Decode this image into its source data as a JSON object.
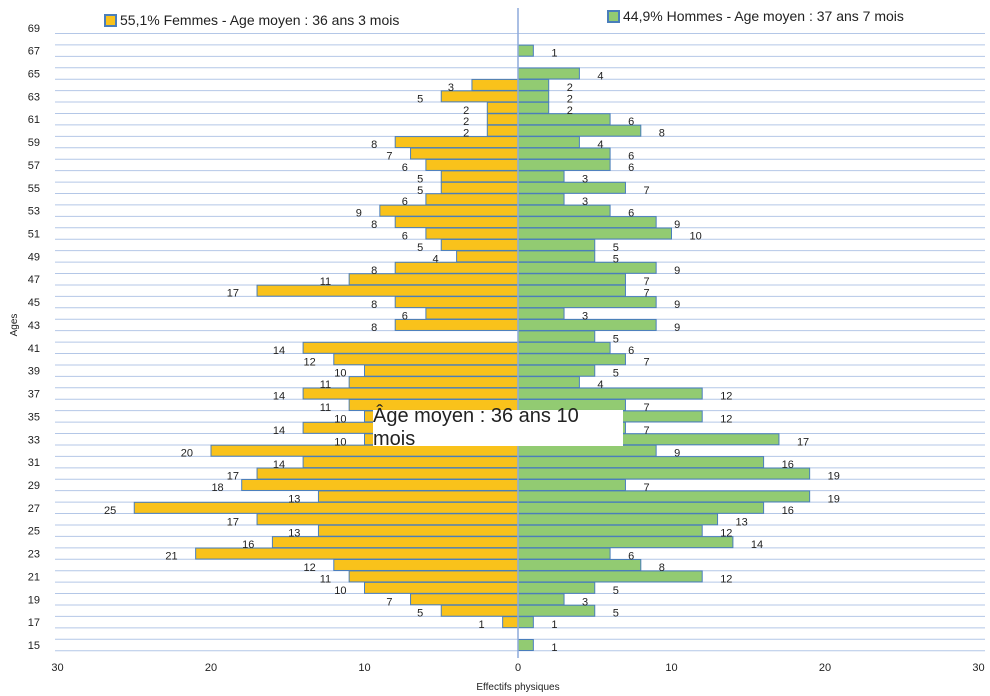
{
  "chart_data": {
    "type": "bar",
    "orientation": "horizontal-diverging",
    "title": "",
    "xlabel": "Effectifs physiques",
    "ylabel": "Ages",
    "xlim": [
      -30,
      30
    ],
    "x_ticks": [
      30,
      20,
      10,
      0,
      10,
      20,
      30
    ],
    "y_ticks": [
      15,
      17,
      19,
      21,
      23,
      25,
      27,
      29,
      31,
      33,
      35,
      37,
      39,
      41,
      43,
      45,
      47,
      49,
      51,
      53,
      55,
      57,
      59,
      61,
      63,
      65,
      67,
      69
    ],
    "categories": [
      15,
      16,
      17,
      18,
      19,
      20,
      21,
      22,
      23,
      24,
      25,
      26,
      27,
      28,
      29,
      30,
      31,
      32,
      33,
      34,
      35,
      36,
      37,
      38,
      39,
      40,
      41,
      42,
      43,
      44,
      45,
      46,
      47,
      48,
      49,
      50,
      51,
      52,
      53,
      54,
      55,
      56,
      57,
      58,
      59,
      60,
      61,
      62,
      63,
      64,
      65,
      66,
      67,
      68,
      69
    ],
    "series": [
      {
        "name": "55,1% Femmes - Age moyen : 36 ans 3 mois",
        "color": "#f9c21b",
        "values": [
          null,
          null,
          1,
          5,
          7,
          10,
          11,
          12,
          21,
          16,
          13,
          17,
          25,
          13,
          18,
          17,
          14,
          20,
          10,
          14,
          10,
          11,
          14,
          11,
          10,
          12,
          14,
          null,
          8,
          6,
          8,
          17,
          11,
          8,
          4,
          5,
          6,
          8,
          9,
          6,
          5,
          5,
          6,
          7,
          8,
          2,
          2,
          2,
          5,
          3,
          null,
          null,
          null,
          null,
          null
        ]
      },
      {
        "name": "44,9% Hommes - Age moyen : 37 ans 7 mois",
        "color": "#92cb72",
        "values": [
          1,
          null,
          1,
          5,
          3,
          5,
          12,
          8,
          6,
          14,
          12,
          13,
          16,
          19,
          7,
          19,
          16,
          9,
          17,
          7,
          12,
          7,
          12,
          4,
          5,
          7,
          6,
          5,
          9,
          3,
          9,
          7,
          7,
          9,
          5,
          5,
          10,
          9,
          6,
          3,
          7,
          3,
          6,
          6,
          4,
          8,
          6,
          2,
          2,
          2,
          4,
          null,
          1,
          null,
          null
        ]
      }
    ],
    "annotation": "Âge moyen : 36 ans 10 mois",
    "grid": true,
    "legend": "top"
  },
  "colors": {
    "axis_line": "#8eaadb",
    "bar_border": "#4a7ebb",
    "grid": "#b4c7e7"
  }
}
